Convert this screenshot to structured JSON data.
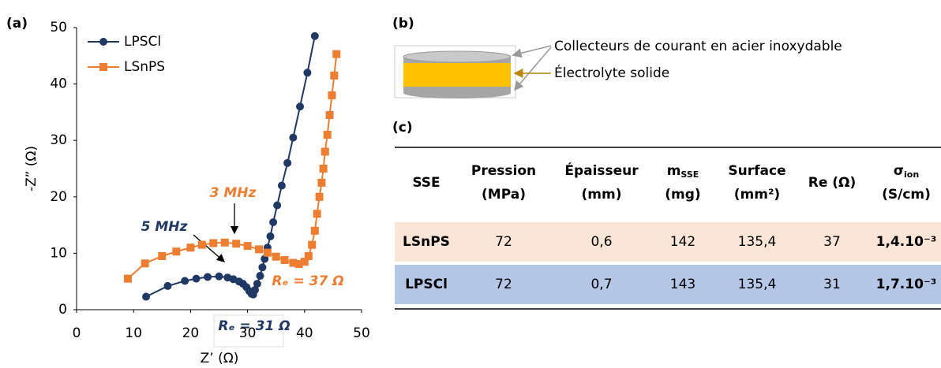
{
  "panel_labels": [
    "(a)",
    "(b)",
    "(c)"
  ],
  "chart_data": {
    "type": "scatter-line",
    "xlabel": "Z’ (Ω)",
    "ylabel": "-Z” (Ω)",
    "xlim": [
      0,
      50
    ],
    "xticks": [
      0,
      10,
      20,
      30,
      40,
      50
    ],
    "ylim": [
      0,
      50
    ],
    "yticks": [
      0,
      10,
      20,
      30,
      40,
      50
    ],
    "legend": "upper left",
    "series": [
      {
        "name": "LPSCl",
        "color": "#203864",
        "marker": "circle",
        "x": [
          12.2,
          16,
          19,
          21,
          23,
          25,
          26.5,
          27.5,
          28.5,
          29.2,
          29.8,
          30.3,
          30.7,
          31,
          31.3,
          31.7,
          32.2,
          32.6,
          33,
          33.5,
          34,
          34.5,
          35.2,
          36,
          37,
          38,
          39.2,
          40.5,
          41.8
        ],
        "values": [
          2.3,
          4.2,
          5.1,
          5.5,
          5.8,
          5.9,
          5.7,
          5.4,
          5.0,
          4.6,
          4.0,
          3.3,
          2.8,
          2.7,
          3.5,
          4.6,
          6,
          7.5,
          9,
          11,
          13,
          15.5,
          18.5,
          22,
          26,
          30.5,
          36,
          42,
          48.5
        ]
      },
      {
        "name": "LSnPS",
        "color": "#ed7d31",
        "marker": "square",
        "x": [
          9,
          12,
          15,
          17.5,
          20,
          22,
          24,
          26,
          28,
          30,
          32,
          33.5,
          35,
          36.5,
          38,
          39,
          40,
          40.7,
          41.3,
          41.8,
          42.2,
          42.6,
          43,
          43.3,
          43.6,
          44,
          44.4,
          44.8,
          45.2,
          45.6
        ],
        "values": [
          5.5,
          8.2,
          9.5,
          10.3,
          11,
          11.5,
          11.8,
          11.9,
          11.7,
          11.3,
          10.7,
          10.1,
          9.4,
          8.8,
          8.3,
          8.1,
          8.5,
          9.5,
          11.5,
          14,
          17,
          20,
          22.5,
          25,
          28,
          31,
          34.5,
          38,
          41.5,
          45.3
        ]
      }
    ],
    "annotations": [
      "3 MHz",
      "5 MHz",
      "Rₑ = 37 Ω",
      "Rₑ = 31 Ω"
    ]
  },
  "diagram": {
    "labels": [
      "Collecteurs de courant en acier inoxydable",
      "Électrolyte solide"
    ]
  },
  "table": {
    "header": [
      {
        "lines": [
          "SSE"
        ]
      },
      {
        "lines": [
          "Pression",
          "(MPa)"
        ]
      },
      {
        "lines": [
          "Épaisseur",
          "(mm)"
        ]
      },
      {
        "lines": [
          {
            "base": "m",
            "sub": "SSE"
          },
          "(mg)"
        ]
      },
      {
        "lines": [
          "Surface",
          "(mm²)"
        ]
      },
      {
        "lines": [
          "Re (Ω)"
        ]
      },
      {
        "lines": [
          {
            "base": "σ",
            "sub": "ion"
          },
          "(S/cm)"
        ]
      }
    ],
    "rows": [
      [
        "LSnPS",
        "72",
        "0,6",
        "142",
        "135,4",
        "37",
        "1,4.10⁻³"
      ],
      [
        "LPSCl",
        "72",
        "0,7",
        "143",
        "135,4",
        "31",
        "1,7.10⁻³"
      ]
    ],
    "row_colors": [
      "#fbe5d6",
      "#b4c7e7"
    ]
  }
}
